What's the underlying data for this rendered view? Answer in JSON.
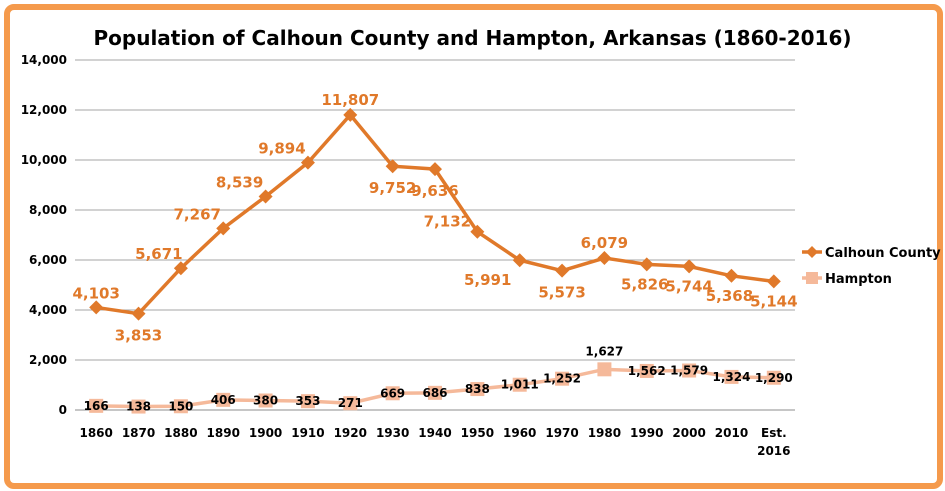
{
  "colors": {
    "border": "#f59a4c",
    "calhoun": "#e0792a",
    "hampton": "#f5b99a",
    "grid": "#a6a6a6"
  },
  "chart_data": {
    "type": "line",
    "title": "Population of Calhoun County and Hampton, Arkansas (1860-2016)",
    "xlabel": "",
    "ylabel": "",
    "ylim": [
      0,
      14000
    ],
    "yticks": [
      "0",
      "2,000",
      "4,000",
      "6,000",
      "8,000",
      "10,000",
      "12,000",
      "14,000"
    ],
    "grid": true,
    "legend_position": "right",
    "categories": [
      "1860",
      "1870",
      "1880",
      "1890",
      "1900",
      "1910",
      "1920",
      "1930",
      "1940",
      "1950",
      "1960",
      "1970",
      "1980",
      "1990",
      "2000",
      "2010",
      "Est. 2016"
    ],
    "series": [
      {
        "name": "Calhoun County",
        "marker": "diamond",
        "values": [
          4103,
          3853,
          5671,
          7267,
          8539,
          9894,
          11807,
          9752,
          9636,
          7132,
          5991,
          5573,
          6079,
          5826,
          5744,
          5368,
          5144
        ],
        "labels": [
          "4,103",
          "3,853",
          "5,671",
          "7,267",
          "8,539",
          "9,894",
          "11,807",
          "9,752",
          "9,636",
          "7,132",
          "5,991",
          "5,573",
          "6,079",
          "5,826",
          "5,744",
          "5,368",
          "5,144"
        ]
      },
      {
        "name": "Hampton",
        "marker": "square",
        "values": [
          166,
          138,
          150,
          406,
          380,
          353,
          271,
          669,
          686,
          838,
          1011,
          1252,
          1627,
          1562,
          1579,
          1324,
          1290
        ],
        "labels": [
          "166",
          "138",
          "150",
          "406",
          "380",
          "353",
          "271",
          "669",
          "686",
          "838",
          "1,011",
          "1,252",
          "1,627",
          "1,562",
          "1,579",
          "1,324",
          "1,290"
        ]
      }
    ]
  }
}
